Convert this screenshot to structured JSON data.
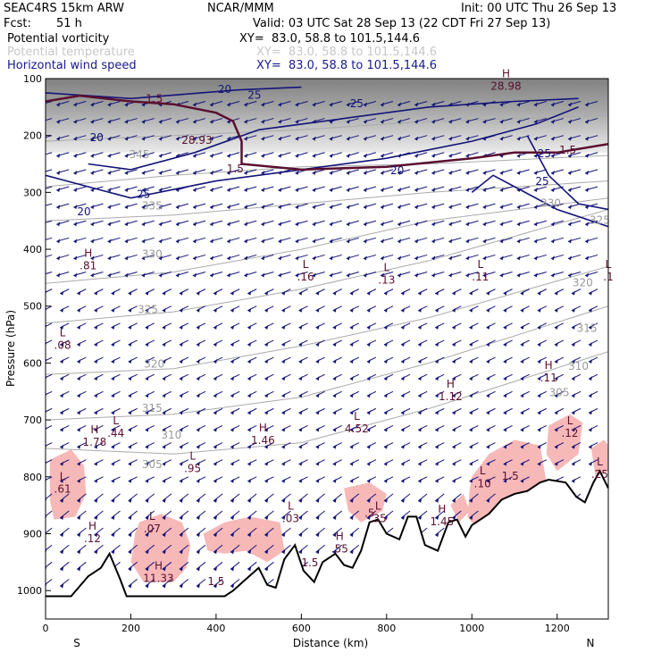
{
  "header": {
    "title": "SEAC4RS 15km ARW",
    "org": "NCAR/MMM",
    "init": "Init: 00 UTC Thu 26 Sep 13",
    "fcst_label": "Fcst:",
    "fcst_value": "51 h",
    "valid": "Valid: 03 UTC Sat 28 Sep 13 (22 CDT Fri 27 Sep 13)"
  },
  "legend": [
    {
      "name": "Potential vorticity",
      "xy": "XY=  83.0, 58.8 to 101.5,144.6",
      "color": "#000000"
    },
    {
      "name": "Potential temperature",
      "xy": "XY=  83.0, 58.8 to 101.5,144.6",
      "color": "#c8c8c8"
    },
    {
      "name": "Horizontal wind speed",
      "xy": "XY=  83.0, 58.8 to 101.5,144.6",
      "color": "#1a1a8c"
    }
  ],
  "colors": {
    "pv": "#5a1030",
    "theta": "#aaaaaa",
    "wind": "#141478",
    "shade": "#f7b8b8",
    "terrain": "#000000"
  },
  "chart_data": {
    "type": "cross-section",
    "xlabel": "Distance (km)",
    "ylabel": "Pressure (hPa)",
    "xlim": [
      0,
      1320
    ],
    "ylim": [
      1050,
      100
    ],
    "xticks": [
      "0",
      "200",
      "400",
      "600",
      "800",
      "1000",
      "1200"
    ],
    "xtick_values": [
      0,
      200,
      400,
      600,
      800,
      1000,
      1200
    ],
    "yticks": [
      "100",
      "200",
      "300",
      "400",
      "500",
      "600",
      "700",
      "800",
      "900",
      "1000"
    ],
    "ytick_values": [
      100,
      200,
      300,
      400,
      500,
      600,
      700,
      800,
      900,
      1000
    ],
    "end_labels": {
      "left": "S",
      "right": "N"
    },
    "theta_contours": [
      {
        "label": "345",
        "values": [
          [
            0,
            210
          ],
          [
            300,
            200
          ],
          [
            600,
            190
          ],
          [
            900,
            175
          ],
          [
            1320,
            165
          ]
        ]
      },
      {
        "label": "335",
        "values": [
          [
            0,
            290
          ],
          [
            300,
            270
          ],
          [
            600,
            255
          ],
          [
            900,
            250
          ],
          [
            1320,
            235
          ]
        ]
      },
      {
        "label": "330",
        "values": [
          [
            0,
            350
          ],
          [
            300,
            340
          ],
          [
            600,
            320
          ],
          [
            900,
            300
          ],
          [
            1320,
            280
          ]
        ]
      },
      {
        "label": "325",
        "values": [
          [
            0,
            460
          ],
          [
            300,
            440
          ],
          [
            600,
            400
          ],
          [
            900,
            350
          ],
          [
            1320,
            310
          ]
        ]
      },
      {
        "label": "320",
        "values": [
          [
            0,
            530
          ],
          [
            300,
            510
          ],
          [
            600,
            470
          ],
          [
            900,
            420
          ],
          [
            1320,
            330
          ]
        ]
      },
      {
        "label": "315",
        "values": [
          [
            0,
            620
          ],
          [
            300,
            610
          ],
          [
            600,
            570
          ],
          [
            900,
            520
          ],
          [
            1320,
            430
          ]
        ]
      },
      {
        "label": "310",
        "values": [
          [
            0,
            700
          ],
          [
            300,
            690
          ],
          [
            600,
            660
          ],
          [
            900,
            600
          ],
          [
            1320,
            500
          ]
        ]
      },
      {
        "label": "305",
        "values": [
          [
            0,
            750
          ],
          [
            300,
            760
          ],
          [
            600,
            740
          ],
          [
            900,
            680
          ],
          [
            1320,
            580
          ]
        ]
      }
    ],
    "theta_labels": [
      {
        "text": "345",
        "x": 220,
        "p": 240
      },
      {
        "text": "335",
        "x": 250,
        "p": 330
      },
      {
        "text": "330",
        "x": 250,
        "p": 415
      },
      {
        "text": "325",
        "x": 240,
        "p": 512
      },
      {
        "text": "320",
        "x": 255,
        "p": 608
      },
      {
        "text": "315",
        "x": 250,
        "p": 686
      },
      {
        "text": "310",
        "x": 295,
        "p": 733
      },
      {
        "text": "305",
        "x": 250,
        "p": 785
      },
      {
        "text": "330",
        "x": 1185,
        "p": 325
      },
      {
        "text": "325",
        "x": 1300,
        "p": 355
      },
      {
        "text": "320",
        "x": 1260,
        "p": 465
      },
      {
        "text": "315",
        "x": 1270,
        "p": 545
      },
      {
        "text": "310",
        "x": 1250,
        "p": 612
      },
      {
        "text": "305",
        "x": 1205,
        "p": 658
      }
    ],
    "wind_contours": [
      {
        "label": "20",
        "values": [
          [
            0,
            125
          ],
          [
            200,
            135
          ],
          [
            450,
            120
          ],
          [
            600,
            115
          ]
        ]
      },
      {
        "label": "25",
        "values": [
          [
            100,
            250
          ],
          [
            200,
            260
          ],
          [
            350,
            230
          ],
          [
            500,
            190
          ],
          [
            700,
            170
          ],
          [
            900,
            150
          ],
          [
            1100,
            140
          ],
          [
            1250,
            135
          ]
        ]
      },
      {
        "label": "20",
        "values": [
          [
            0,
            270
          ],
          [
            200,
            310
          ],
          [
            400,
            280
          ],
          [
            600,
            260
          ],
          [
            800,
            240
          ],
          [
            1000,
            210
          ],
          [
            1150,
            180
          ],
          [
            1250,
            150
          ]
        ]
      },
      {
        "label": "25",
        "values": [
          [
            1000,
            300
          ],
          [
            1050,
            270
          ],
          [
            1100,
            290
          ],
          [
            1200,
            330
          ],
          [
            1320,
            360
          ]
        ]
      },
      {
        "label": "25",
        "values": [
          [
            1130,
            200
          ],
          [
            1180,
            270
          ],
          [
            1250,
            320
          ],
          [
            1320,
            330
          ]
        ]
      }
    ],
    "wind_labels": [
      {
        "text": "20",
        "x": 420,
        "p": 125
      },
      {
        "text": "25",
        "x": 490,
        "p": 135
      },
      {
        "text": "25",
        "x": 730,
        "p": 150
      },
      {
        "text": "20",
        "x": 120,
        "p": 210
      },
      {
        "text": "25",
        "x": 230,
        "p": 310
      },
      {
        "text": "20",
        "x": 90,
        "p": 340
      },
      {
        "text": "20",
        "x": 825,
        "p": 268
      },
      {
        "text": "25",
        "x": 1170,
        "p": 238
      },
      {
        "text": "25",
        "x": 1165,
        "p": 287
      }
    ],
    "pv_contour_150": [
      [
        0,
        140
      ],
      [
        80,
        130
      ],
      [
        200,
        140
      ],
      [
        300,
        145
      ],
      [
        400,
        160
      ],
      [
        440,
        175
      ],
      [
        460,
        210
      ],
      [
        460,
        250
      ],
      [
        600,
        260
      ],
      [
        800,
        255
      ],
      [
        1000,
        240
      ],
      [
        1100,
        230
      ],
      [
        1200,
        230
      ],
      [
        1320,
        215
      ]
    ],
    "pv_labels": [
      {
        "text": "1.5",
        "x": 255,
        "p": 142
      },
      {
        "text": "1.5",
        "x": 445,
        "p": 265
      },
      {
        "text": "1.5",
        "x": 1225,
        "p": 232
      },
      {
        "text": "1.5",
        "x": 1090,
        "p": 805
      },
      {
        "text": "1.5",
        "x": 620,
        "p": 957
      },
      {
        "text": "1.5",
        "x": 400,
        "p": 990
      },
      {
        "text": ".5",
        "x": 760,
        "p": 870
      }
    ],
    "extrema": [
      {
        "kind": "H",
        "value": "28.98",
        "x": 1080,
        "p": 120
      },
      {
        "kind": "",
        "value": "28.93",
        "x": 355,
        "p": 215
      },
      {
        "kind": "H",
        "value": ".81",
        "x": 100,
        "p": 435
      },
      {
        "kind": "L",
        "value": ".16",
        "x": 610,
        "p": 455
      },
      {
        "kind": "L",
        "value": ".13",
        "x": 800,
        "p": 460
      },
      {
        "kind": "L",
        "value": ".11",
        "x": 1020,
        "p": 455
      },
      {
        "kind": "L",
        "value": ".1",
        "x": 1320,
        "p": 455
      },
      {
        "kind": "L",
        "value": ".08",
        "x": 40,
        "p": 575
      },
      {
        "kind": "H",
        "value": ".11",
        "x": 1180,
        "p": 632
      },
      {
        "kind": "H",
        "value": "1.12",
        "x": 950,
        "p": 665
      },
      {
        "kind": "L",
        "value": ".44",
        "x": 165,
        "p": 730
      },
      {
        "kind": "H",
        "value": "1.78",
        "x": 115,
        "p": 745
      },
      {
        "kind": "H",
        "value": "1.46",
        "x": 510,
        "p": 742
      },
      {
        "kind": "L",
        "value": "4.52",
        "x": 730,
        "p": 722
      },
      {
        "kind": "L",
        "value": ".12",
        "x": 1230,
        "p": 730
      },
      {
        "kind": "L",
        "value": ".95",
        "x": 345,
        "p": 792
      },
      {
        "kind": "L",
        "value": ".61",
        "x": 40,
        "p": 828
      },
      {
        "kind": "L",
        "value": ".25",
        "x": 1300,
        "p": 802
      },
      {
        "kind": "L",
        "value": ".10",
        "x": 1025,
        "p": 818
      },
      {
        "kind": "L",
        "value": ".03",
        "x": 575,
        "p": 880
      },
      {
        "kind": "L",
        "value": ".07",
        "x": 250,
        "p": 898
      },
      {
        "kind": "H",
        "value": ".12",
        "x": 110,
        "p": 915
      },
      {
        "kind": "H",
        "value": "1.45",
        "x": 930,
        "p": 885
      },
      {
        "kind": "H",
        "value": ".55",
        "x": 690,
        "p": 933
      },
      {
        "kind": "L",
        "value": ".35",
        "x": 780,
        "p": 880
      },
      {
        "kind": "H",
        "value": "11.33",
        "x": 265,
        "p": 985
      }
    ],
    "shaded_regions": [
      [
        [
          10,
          770
        ],
        [
          60,
          752
        ],
        [
          90,
          780
        ],
        [
          95,
          830
        ],
        [
          70,
          870
        ],
        [
          20,
          875
        ],
        [
          10,
          840
        ]
      ],
      [
        [
          220,
          880
        ],
        [
          270,
          865
        ],
        [
          320,
          880
        ],
        [
          340,
          920
        ],
        [
          330,
          960
        ],
        [
          300,
          985
        ],
        [
          230,
          985
        ],
        [
          200,
          950
        ],
        [
          210,
          900
        ]
      ],
      [
        [
          370,
          900
        ],
        [
          420,
          880
        ],
        [
          480,
          870
        ],
        [
          550,
          880
        ],
        [
          560,
          930
        ],
        [
          520,
          950
        ],
        [
          470,
          930
        ],
        [
          420,
          935
        ],
        [
          380,
          930
        ]
      ],
      [
        [
          700,
          820
        ],
        [
          760,
          810
        ],
        [
          800,
          830
        ],
        [
          790,
          860
        ],
        [
          740,
          880
        ],
        [
          710,
          860
        ]
      ],
      [
        [
          950,
          850
        ],
        [
          980,
          830
        ],
        [
          995,
          860
        ],
        [
          970,
          880
        ]
      ],
      [
        [
          1000,
          800
        ],
        [
          1040,
          760
        ],
        [
          1100,
          735
        ],
        [
          1160,
          745
        ],
        [
          1175,
          810
        ],
        [
          1120,
          840
        ],
        [
          1060,
          880
        ],
        [
          1020,
          900
        ],
        [
          990,
          870
        ],
        [
          995,
          820
        ]
      ],
      [
        [
          1180,
          710
        ],
        [
          1230,
          690
        ],
        [
          1260,
          705
        ],
        [
          1250,
          760
        ],
        [
          1200,
          790
        ],
        [
          1175,
          760
        ]
      ],
      [
        [
          1280,
          750
        ],
        [
          1310,
          735
        ],
        [
          1320,
          745
        ],
        [
          1320,
          790
        ],
        [
          1290,
          800
        ]
      ]
    ],
    "terrain": [
      [
        0,
        1010
      ],
      [
        20,
        1010
      ],
      [
        60,
        1010
      ],
      [
        100,
        975
      ],
      [
        130,
        960
      ],
      [
        150,
        935
      ],
      [
        175,
        980
      ],
      [
        190,
        1010
      ],
      [
        300,
        1010
      ],
      [
        420,
        1010
      ],
      [
        440,
        1000
      ],
      [
        470,
        980
      ],
      [
        500,
        960
      ],
      [
        520,
        990
      ],
      [
        540,
        995
      ],
      [
        560,
        945
      ],
      [
        585,
        920
      ],
      [
        605,
        965
      ],
      [
        630,
        985
      ],
      [
        650,
        950
      ],
      [
        680,
        935
      ],
      [
        700,
        955
      ],
      [
        720,
        960
      ],
      [
        740,
        930
      ],
      [
        760,
        880
      ],
      [
        780,
        875
      ],
      [
        800,
        900
      ],
      [
        830,
        910
      ],
      [
        850,
        870
      ],
      [
        870,
        870
      ],
      [
        890,
        920
      ],
      [
        920,
        930
      ],
      [
        945,
        880
      ],
      [
        965,
        875
      ],
      [
        985,
        905
      ],
      [
        1000,
        885
      ],
      [
        1040,
        865
      ],
      [
        1070,
        840
      ],
      [
        1100,
        830
      ],
      [
        1130,
        825
      ],
      [
        1160,
        810
      ],
      [
        1180,
        805
      ],
      [
        1220,
        810
      ],
      [
        1245,
        835
      ],
      [
        1265,
        845
      ],
      [
        1285,
        810
      ],
      [
        1300,
        790
      ],
      [
        1320,
        820
      ]
    ]
  }
}
